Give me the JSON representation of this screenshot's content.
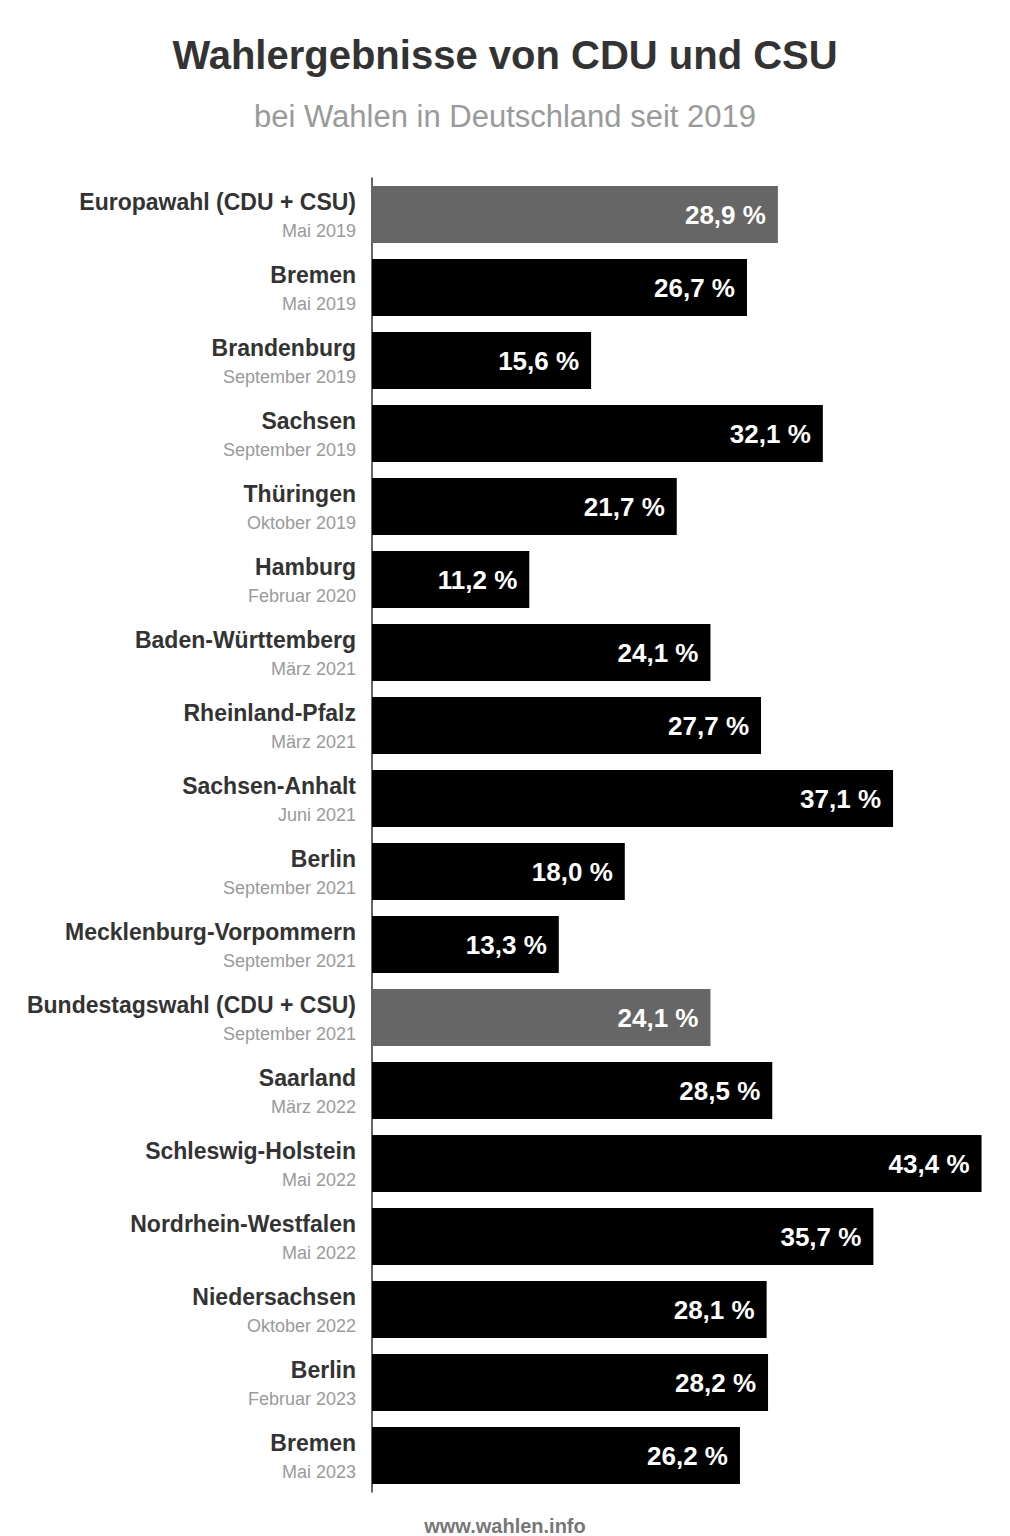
{
  "chart_data": {
    "type": "bar",
    "title": "Wahlergebnisse von CDU und CSU",
    "subtitle": "bei Wahlen in Deutschland seit 2019",
    "source": "www.wahlen.info",
    "orientation": "horizontal",
    "categories": [
      "Europawahl (CDU + CSU)",
      "Bremen",
      "Brandenburg",
      "Sachsen",
      "Thüringen",
      "Hamburg",
      "Baden-Württemberg",
      "Rheinland-Pfalz",
      "Sachsen-Anhalt",
      "Berlin",
      "Mecklenburg-Vorpommern",
      "Bundestagswahl (CDU + CSU)",
      "Saarland",
      "Schleswig-Holstein",
      "Nordrhein-Westfalen",
      "Niedersachsen",
      "Berlin",
      "Bremen"
    ],
    "dates": [
      "Mai 2019",
      "Mai 2019",
      "September 2019",
      "September 2019",
      "Oktober 2019",
      "Februar 2020",
      "März 2021",
      "März 2021",
      "Juni 2021",
      "September 2021",
      "September 2021",
      "September 2021",
      "März 2022",
      "Mai 2022",
      "Mai 2022",
      "Oktober 2022",
      "Februar 2023",
      "Mai 2023"
    ],
    "values": [
      28.9,
      26.7,
      15.6,
      32.1,
      21.7,
      11.2,
      24.1,
      27.7,
      37.1,
      18.0,
      13.3,
      24.1,
      28.5,
      43.4,
      35.7,
      28.1,
      28.2,
      26.2
    ],
    "value_labels": [
      "28,9 %",
      "26,7 %",
      "15,6 %",
      "32,1 %",
      "21,7 %",
      "11,2 %",
      "24,1 %",
      "27,7 %",
      "37,1 %",
      "18,0 %",
      "13,3 %",
      "24,1 %",
      "28,5 %",
      "43,4 %",
      "35,7 %",
      "28,1 %",
      "28,2 %",
      "26,2 %"
    ],
    "colors": [
      "#666666",
      "#000000",
      "#000000",
      "#000000",
      "#000000",
      "#000000",
      "#000000",
      "#000000",
      "#000000",
      "#000000",
      "#000000",
      "#666666",
      "#000000",
      "#000000",
      "#000000",
      "#000000",
      "#000000",
      "#000000"
    ],
    "xlim": [
      0,
      45
    ],
    "grid": false,
    "data_labels": true,
    "tick_labels": "y"
  }
}
